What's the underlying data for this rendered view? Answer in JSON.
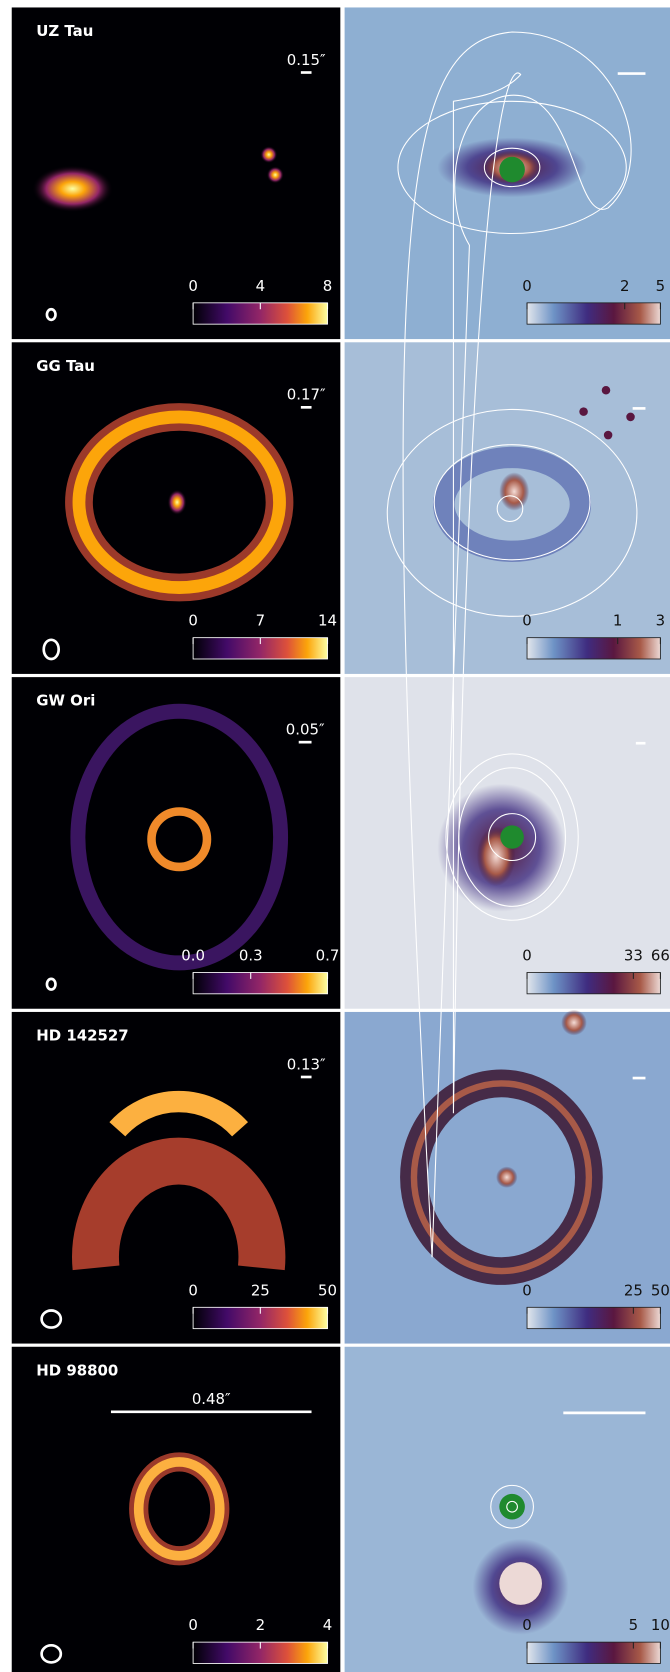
{
  "panels": [
    {
      "name": "UZ Tau",
      "scale_label": "0.15″",
      "left_ticks": [
        0,
        4,
        8
      ],
      "right_ticks": [
        0,
        2,
        5
      ]
    },
    {
      "name": "GG Tau",
      "scale_label": "0.17″",
      "left_ticks": [
        0,
        7,
        14
      ],
      "right_ticks": [
        0,
        1,
        3
      ]
    },
    {
      "name": "GW Ori",
      "scale_label": "0.05″",
      "left_ticks": [
        {
          "value": 0,
          "label": "0.0"
        },
        0.3,
        0.7
      ],
      "right_ticks": [
        0,
        33,
        66
      ]
    },
    {
      "name": "HD 142527",
      "scale_label": "0.13″",
      "left_ticks": [
        0,
        25,
        50
      ],
      "right_ticks": [
        0,
        25,
        50
      ]
    },
    {
      "name": "HD 98800",
      "scale_label": "0.48″",
      "left_ticks": [
        0,
        2,
        4
      ],
      "right_ticks": [
        0,
        5,
        10
      ]
    }
  ],
  "right_colorbar_scale": "asinh"
}
